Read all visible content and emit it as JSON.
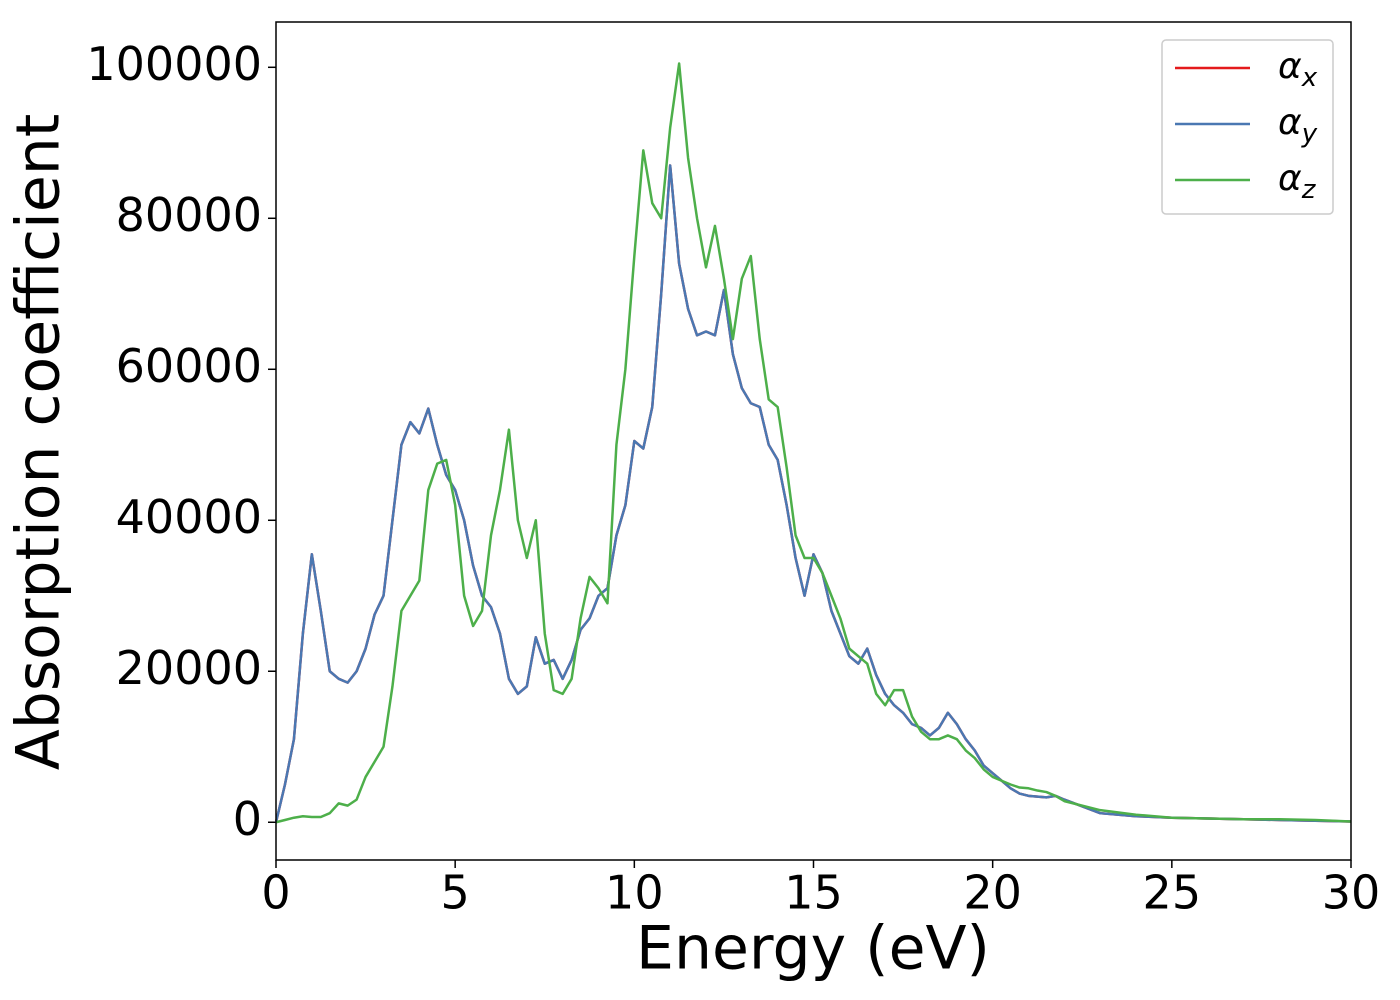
{
  "chart_data": {
    "type": "line",
    "xlabel": "Energy (eV)",
    "ylabel": "Absorption coefficient",
    "x": [
      0,
      0.25,
      0.5,
      0.75,
      1,
      1.25,
      1.5,
      1.75,
      2,
      2.25,
      2.5,
      2.75,
      3,
      3.25,
      3.5,
      3.75,
      4,
      4.25,
      4.5,
      4.75,
      5,
      5.25,
      5.5,
      5.75,
      6,
      6.25,
      6.5,
      6.75,
      7,
      7.25,
      7.5,
      7.75,
      8,
      8.25,
      8.5,
      8.75,
      9,
      9.25,
      9.5,
      9.75,
      10,
      10.25,
      10.5,
      10.75,
      11,
      11.25,
      11.5,
      11.75,
      12,
      12.25,
      12.5,
      12.75,
      13,
      13.25,
      13.5,
      13.75,
      14,
      14.25,
      14.5,
      14.75,
      15,
      15.25,
      15.5,
      15.75,
      16,
      16.25,
      16.5,
      16.75,
      17,
      17.25,
      17.5,
      17.75,
      18,
      18.25,
      18.5,
      18.75,
      19,
      19.25,
      19.5,
      19.75,
      20,
      20.25,
      20.5,
      20.75,
      21,
      21.25,
      21.5,
      21.75,
      22,
      23,
      24,
      25,
      26,
      27,
      28,
      29,
      30
    ],
    "series": [
      {
        "name": "αx",
        "color": "#e41a1c",
        "values": [
          0,
          5000,
          11000,
          25000,
          35500,
          28000,
          20000,
          19000,
          18500,
          20000,
          23000,
          27500,
          30000,
          40000,
          50000,
          53000,
          51500,
          54800,
          50000,
          46000,
          44000,
          40000,
          34000,
          30000,
          28500,
          25000,
          19000,
          17000,
          18000,
          24500,
          21000,
          21500,
          19000,
          21500,
          25500,
          27000,
          30000,
          31000,
          38000,
          42000,
          50500,
          49500,
          55000,
          70000,
          87000,
          74000,
          68000,
          64500,
          65000,
          64500,
          70500,
          62000,
          57500,
          55500,
          55000,
          50000,
          48000,
          42000,
          35000,
          30000,
          35500,
          33000,
          28000,
          25000,
          22000,
          21000,
          23000,
          19500,
          17000,
          15500,
          14500,
          13000,
          12500,
          11500,
          12500,
          14500,
          13000,
          11000,
          9500,
          7500,
          6500,
          5500,
          4500,
          3800,
          3500,
          3400,
          3300,
          3500,
          3000,
          1200,
          800,
          600,
          500,
          400,
          300,
          200,
          100
        ]
      },
      {
        "name": "αy",
        "color": "#4a78b2",
        "values": [
          0,
          5000,
          11000,
          25000,
          35500,
          28000,
          20000,
          19000,
          18500,
          20000,
          23000,
          27500,
          30000,
          40000,
          50000,
          53000,
          51500,
          54800,
          50000,
          46000,
          44000,
          40000,
          34000,
          30000,
          28500,
          25000,
          19000,
          17000,
          18000,
          24500,
          21000,
          21500,
          19000,
          21500,
          25500,
          27000,
          30000,
          31000,
          38000,
          42000,
          50500,
          49500,
          55000,
          70000,
          87000,
          74000,
          68000,
          64500,
          65000,
          64500,
          70500,
          62000,
          57500,
          55500,
          55000,
          50000,
          48000,
          42000,
          35000,
          30000,
          35500,
          33000,
          28000,
          25000,
          22000,
          21000,
          23000,
          19500,
          17000,
          15500,
          14500,
          13000,
          12500,
          11500,
          12500,
          14500,
          13000,
          11000,
          9500,
          7500,
          6500,
          5500,
          4500,
          3800,
          3500,
          3400,
          3300,
          3500,
          3000,
          1200,
          800,
          600,
          500,
          400,
          300,
          200,
          100
        ]
      },
      {
        "name": "αz",
        "color": "#4daf4a",
        "values": [
          0,
          300,
          600,
          800,
          700,
          700,
          1200,
          2500,
          2200,
          3000,
          6000,
          8000,
          10000,
          18000,
          28000,
          30000,
          32000,
          44000,
          47500,
          48000,
          42000,
          30000,
          26000,
          28000,
          38000,
          44000,
          52000,
          40000,
          35000,
          40000,
          25000,
          17500,
          17000,
          19000,
          27000,
          32500,
          31000,
          29000,
          50000,
          60000,
          75000,
          89000,
          82000,
          80000,
          92000,
          100500,
          88000,
          80000,
          73500,
          79000,
          72000,
          64000,
          72000,
          75000,
          64000,
          56000,
          55000,
          47000,
          38000,
          35000,
          35000,
          33000,
          30000,
          27000,
          23000,
          22000,
          21000,
          17000,
          15500,
          17500,
          17500,
          14000,
          12000,
          11000,
          11000,
          11500,
          11000,
          9500,
          8500,
          7000,
          6000,
          5500,
          5000,
          4600,
          4500,
          4200,
          4000,
          3500,
          2800,
          1600,
          1000,
          600,
          500,
          400,
          400,
          300,
          100
        ]
      }
    ],
    "xlim": [
      0,
      30
    ],
    "xticks": [
      0,
      5,
      10,
      15,
      20,
      25,
      30
    ],
    "ylim": [
      -5000,
      106000
    ],
    "yticks": [
      0,
      20000,
      40000,
      60000,
      80000,
      100000
    ],
    "grid": false,
    "legend": "upper right"
  }
}
